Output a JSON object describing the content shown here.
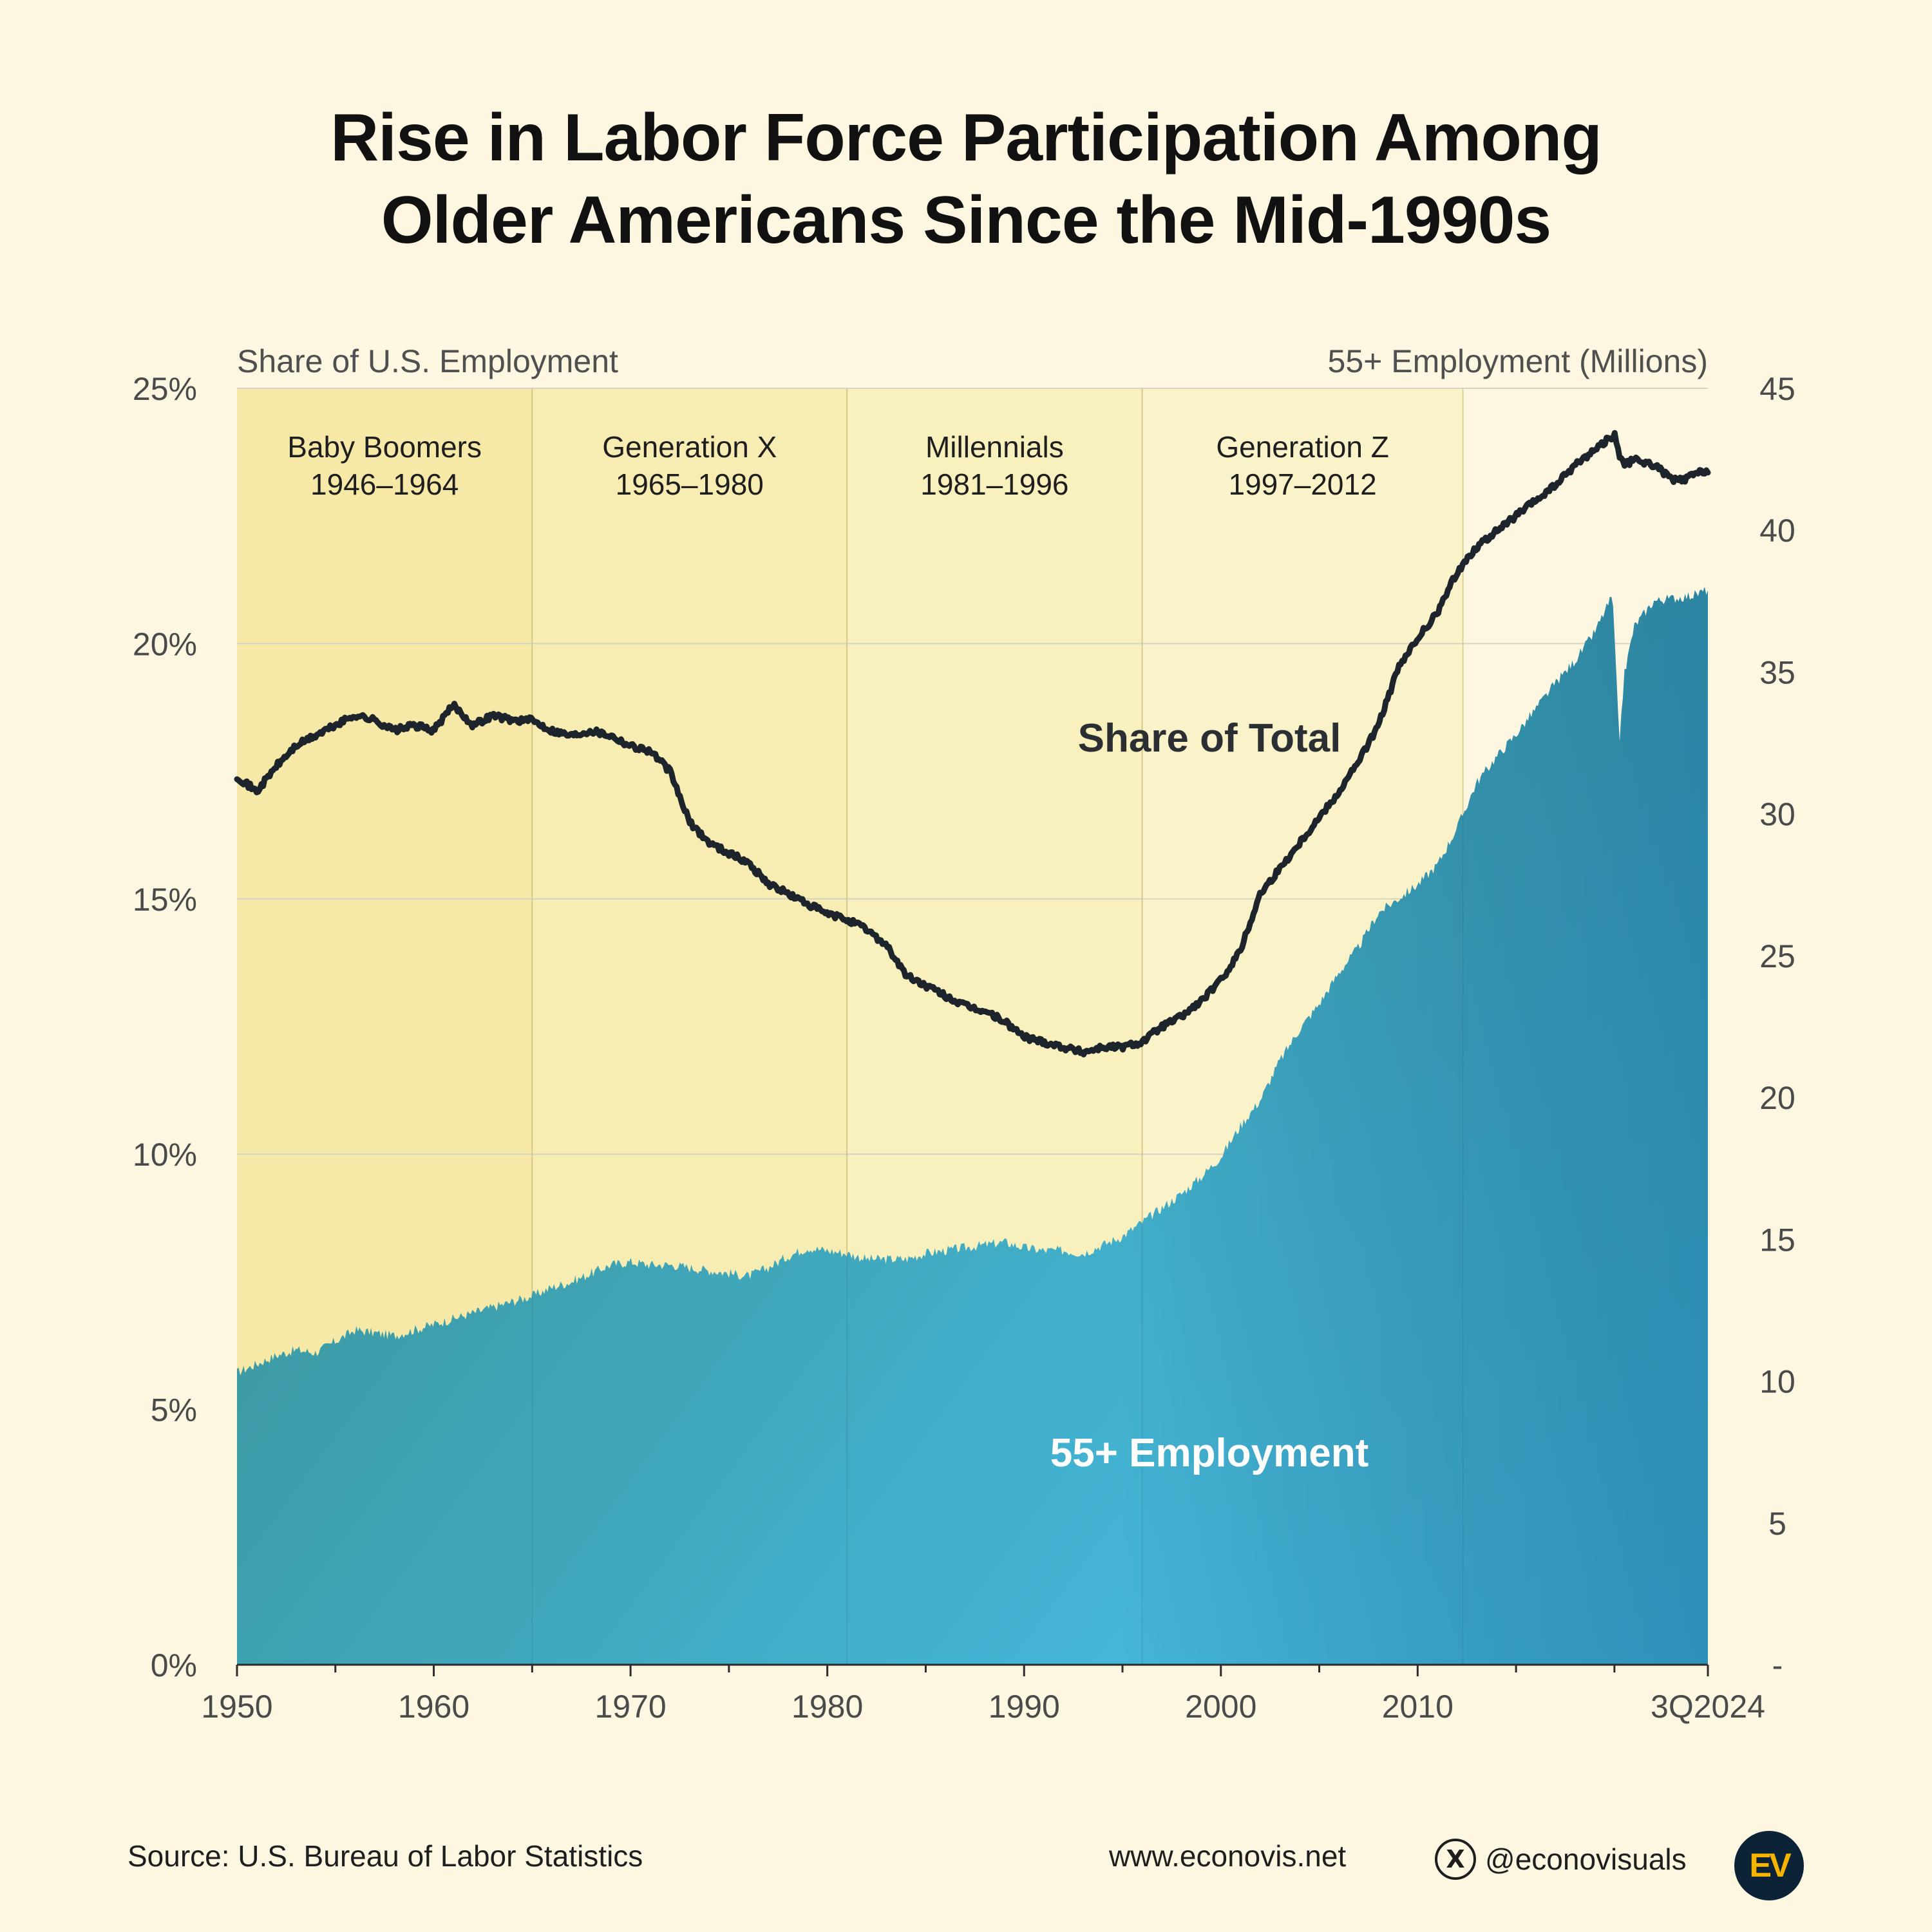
{
  "title": {
    "line1": "Rise in Labor Force Participation Among",
    "line2": "Older Americans Since the Mid-1990s"
  },
  "colors": {
    "background": "#fdf7e1",
    "line": "#1e242b",
    "area_top_left": "#3a8e8a",
    "area_bottom_right": "#47c4f4",
    "area_top_right": "#0b5d8a",
    "band_boomers": "#f6e9a8",
    "band_genx": "#f7edb2",
    "band_millennials": "#f8f0bd",
    "band_genz": "#faf3c9"
  },
  "chart_data": {
    "type": "area+line (dual axis)",
    "left_axis": {
      "label": "Share of U.S. Employment",
      "range": [
        0,
        25
      ],
      "ticks": [
        0,
        5,
        10,
        15,
        20,
        25
      ],
      "tick_labels": [
        "0%",
        "5%",
        "10%",
        "15%",
        "20%",
        "25%"
      ]
    },
    "right_axis": {
      "label": "55+ Employment (Millions)",
      "range": [
        0,
        45
      ],
      "ticks": [
        0,
        5,
        10,
        15,
        20,
        25,
        30,
        35,
        40,
        45
      ],
      "tick_labels": [
        "-",
        "5",
        "10",
        "15",
        "20",
        "25",
        "30",
        "35",
        "40",
        "45"
      ]
    },
    "x_axis": {
      "range": [
        1950,
        2024.75
      ],
      "tick_values": [
        1950,
        1960,
        1970,
        1980,
        1990,
        2000,
        2010,
        2024.75
      ],
      "tick_labels": [
        "1950",
        "1960",
        "1970",
        "1980",
        "1990",
        "2000",
        "2010",
        "3Q2024"
      ],
      "minor_ticks": [
        1955,
        1965,
        1975,
        1985,
        1995,
        2005,
        2015,
        2020
      ]
    },
    "generations": [
      {
        "name": "Baby Boomers",
        "years_label": "1946–1964",
        "start": 1950,
        "end": 1965
      },
      {
        "name": "Generation X",
        "years_label": "1965–1980",
        "start": 1965,
        "end": 1981
      },
      {
        "name": "Millennials",
        "years_label": "1981–1996",
        "start": 1981,
        "end": 1996
      },
      {
        "name": "Generation Z",
        "years_label": "1997–2012",
        "start": 1996,
        "end": 2012.3
      }
    ],
    "series": [
      {
        "name": "Share of Total",
        "axis": "left",
        "unit": "%",
        "x": [
          1950,
          1951,
          1952,
          1953,
          1954,
          1955,
          1956,
          1957,
          1958,
          1959,
          1960,
          1961,
          1962,
          1963,
          1964,
          1965,
          1966,
          1967,
          1968,
          1969,
          1970,
          1971,
          1972,
          1973,
          1974,
          1975,
          1976,
          1977,
          1978,
          1979,
          1980,
          1981,
          1982,
          1983,
          1984,
          1985,
          1986,
          1987,
          1988,
          1989,
          1990,
          1991,
          1992,
          1993,
          1994,
          1995,
          1996,
          1997,
          1998,
          1999,
          2000,
          2001,
          2002,
          2003,
          2004,
          2005,
          2006,
          2007,
          2008,
          2009,
          2010,
          2011,
          2012,
          2013,
          2014,
          2015,
          2016,
          2017,
          2018,
          2019,
          2020,
          2020.25,
          2020.5,
          2021,
          2022,
          2023,
          2023.5,
          2024,
          2024.75
        ],
        "values": [
          17.4,
          17.1,
          17.6,
          18.0,
          18.2,
          18.4,
          18.6,
          18.5,
          18.3,
          18.4,
          18.3,
          18.8,
          18.4,
          18.6,
          18.5,
          18.5,
          18.3,
          18.2,
          18.3,
          18.2,
          18.0,
          17.9,
          17.5,
          16.5,
          16.1,
          15.9,
          15.7,
          15.3,
          15.1,
          14.9,
          14.7,
          14.6,
          14.4,
          14.1,
          13.5,
          13.3,
          13.1,
          12.9,
          12.8,
          12.6,
          12.3,
          12.2,
          12.1,
          12.0,
          12.1,
          12.1,
          12.2,
          12.5,
          12.7,
          13.0,
          13.4,
          14.0,
          15.1,
          15.6,
          16.1,
          16.6,
          17.1,
          17.7,
          18.4,
          19.5,
          20.1,
          20.6,
          21.4,
          21.9,
          22.2,
          22.5,
          22.8,
          23.1,
          23.5,
          23.8,
          24.1,
          23.7,
          23.5,
          23.6,
          23.5,
          23.2,
          23.2,
          23.3,
          23.4
        ]
      },
      {
        "name": "55+ Employment",
        "axis": "right",
        "unit": "millions",
        "x": [
          1950,
          1951,
          1952,
          1953,
          1954,
          1955,
          1956,
          1957,
          1958,
          1959,
          1960,
          1961,
          1962,
          1963,
          1964,
          1965,
          1966,
          1967,
          1968,
          1969,
          1970,
          1971,
          1972,
          1973,
          1974,
          1975,
          1976,
          1977,
          1978,
          1979,
          1980,
          1981,
          1982,
          1983,
          1984,
          1985,
          1986,
          1987,
          1988,
          1989,
          1990,
          1991,
          1992,
          1993,
          1994,
          1995,
          1996,
          1997,
          1998,
          1999,
          2000,
          2001,
          2002,
          2003,
          2004,
          2005,
          2006,
          2007,
          2008,
          2009,
          2010,
          2011,
          2012,
          2013,
          2014,
          2015,
          2016,
          2017,
          2018,
          2019,
          2019.9,
          2020.25,
          2020.5,
          2021,
          2022,
          2023,
          2024,
          2024.75
        ],
        "values": [
          10.3,
          10.6,
          10.9,
          11.1,
          11.0,
          11.4,
          11.8,
          11.7,
          11.6,
          11.8,
          12.0,
          12.2,
          12.4,
          12.6,
          12.8,
          13.0,
          13.3,
          13.5,
          13.8,
          14.1,
          14.2,
          14.1,
          14.1,
          14.0,
          13.9,
          13.8,
          13.7,
          14.0,
          14.4,
          14.7,
          14.6,
          14.5,
          14.3,
          14.3,
          14.3,
          14.5,
          14.6,
          14.7,
          14.8,
          14.9,
          14.7,
          14.6,
          14.6,
          14.5,
          14.8,
          15.1,
          15.6,
          16.1,
          16.6,
          17.2,
          17.9,
          19.0,
          19.9,
          21.3,
          22.4,
          23.3,
          24.4,
          25.3,
          26.5,
          27.0,
          27.5,
          28.2,
          29.5,
          31.1,
          32.0,
          32.8,
          33.7,
          34.6,
          35.4,
          36.4,
          37.7,
          32.5,
          34.9,
          36.6,
          37.5,
          37.6,
          37.7,
          37.9
        ]
      }
    ],
    "annotations": [
      {
        "text": "Share of Total"
      },
      {
        "text": "55+ Employment"
      }
    ]
  },
  "footer": {
    "source": "Source: U.S. Bureau of Labor Statistics",
    "website": "www.econovis.net",
    "handle": "@econovisuals",
    "x_glyph": "X",
    "logo_text": "EV"
  }
}
